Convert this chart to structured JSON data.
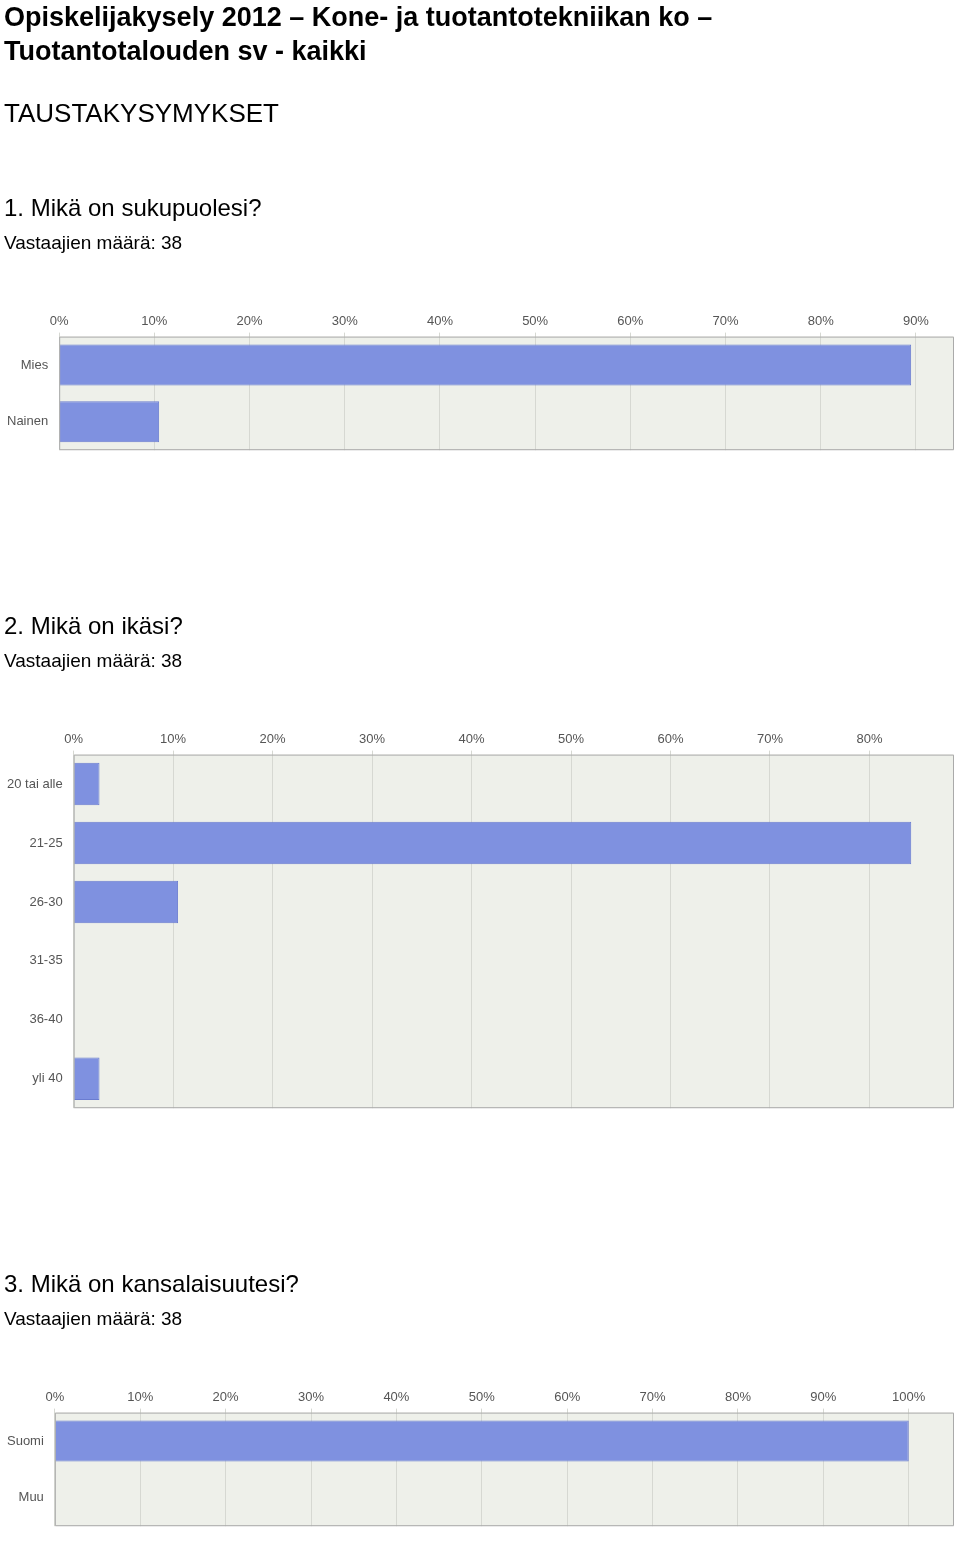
{
  "chart_data": [
    {
      "type": "bar",
      "annotations": [
        "Opiskelijakysely 2012 – Kone- ja tuotantotekniikan ko – Tuotantotalouden sv - kaikki",
        "TAUSTAKYSYMYKSET"
      ],
      "title": "1. Mikä on sukupuolesi?",
      "subtitle": "Vastaajien määrä: 38",
      "orientation": "horizontal",
      "categories": [
        "Mies",
        "Nainen"
      ],
      "values": [
        89.5,
        10.5
      ],
      "color": "#7f91e0",
      "xlim": [
        0,
        94
      ],
      "xticks": [
        {
          "value": 0,
          "label": "0%"
        },
        {
          "value": 10,
          "label": "10%"
        },
        {
          "value": 20,
          "label": "20%"
        },
        {
          "value": 30,
          "label": "30%"
        },
        {
          "value": 40,
          "label": "40%"
        },
        {
          "value": 50,
          "label": "50%"
        },
        {
          "value": 60,
          "label": "60%"
        },
        {
          "value": 70,
          "label": "70%"
        },
        {
          "value": 80,
          "label": "80%"
        },
        {
          "value": 90,
          "label": "90%"
        }
      ],
      "grid": "x"
    },
    {
      "type": "bar",
      "title": "2. Mikä on ikäsi?",
      "subtitle": "Vastaajien määrä: 38",
      "orientation": "horizontal",
      "categories": [
        "20 tai alle",
        "21-25",
        "26-30",
        "31-35",
        "36-40",
        "yli 40"
      ],
      "values": [
        2.6,
        84.2,
        10.5,
        0,
        0,
        2.6
      ],
      "color": "#7f91e0",
      "xlim": [
        0,
        88.5
      ],
      "xticks": [
        {
          "value": 0,
          "label": "0%"
        },
        {
          "value": 10,
          "label": "10%"
        },
        {
          "value": 20,
          "label": "20%"
        },
        {
          "value": 30,
          "label": "30%"
        },
        {
          "value": 40,
          "label": "40%"
        },
        {
          "value": 50,
          "label": "50%"
        },
        {
          "value": 60,
          "label": "60%"
        },
        {
          "value": 70,
          "label": "70%"
        },
        {
          "value": 80,
          "label": "80%"
        }
      ],
      "grid": "x"
    },
    {
      "type": "bar",
      "title": "3. Mikä on kansalaisuutesi?",
      "subtitle": "Vastaajien määrä: 38",
      "orientation": "horizontal",
      "categories": [
        "Suomi",
        "Muu"
      ],
      "values": [
        100,
        0
      ],
      "color": "#7f91e0",
      "xlim": [
        0,
        105.3
      ],
      "xticks": [
        {
          "value": 0,
          "label": "0%"
        },
        {
          "value": 10,
          "label": "10%"
        },
        {
          "value": 20,
          "label": "20%"
        },
        {
          "value": 30,
          "label": "30%"
        },
        {
          "value": 40,
          "label": "40%"
        },
        {
          "value": 50,
          "label": "50%"
        },
        {
          "value": 60,
          "label": "60%"
        },
        {
          "value": 70,
          "label": "70%"
        },
        {
          "value": 80,
          "label": "80%"
        },
        {
          "value": 90,
          "label": "90%"
        },
        {
          "value": 100,
          "label": "100%"
        }
      ],
      "grid": "x"
    }
  ]
}
